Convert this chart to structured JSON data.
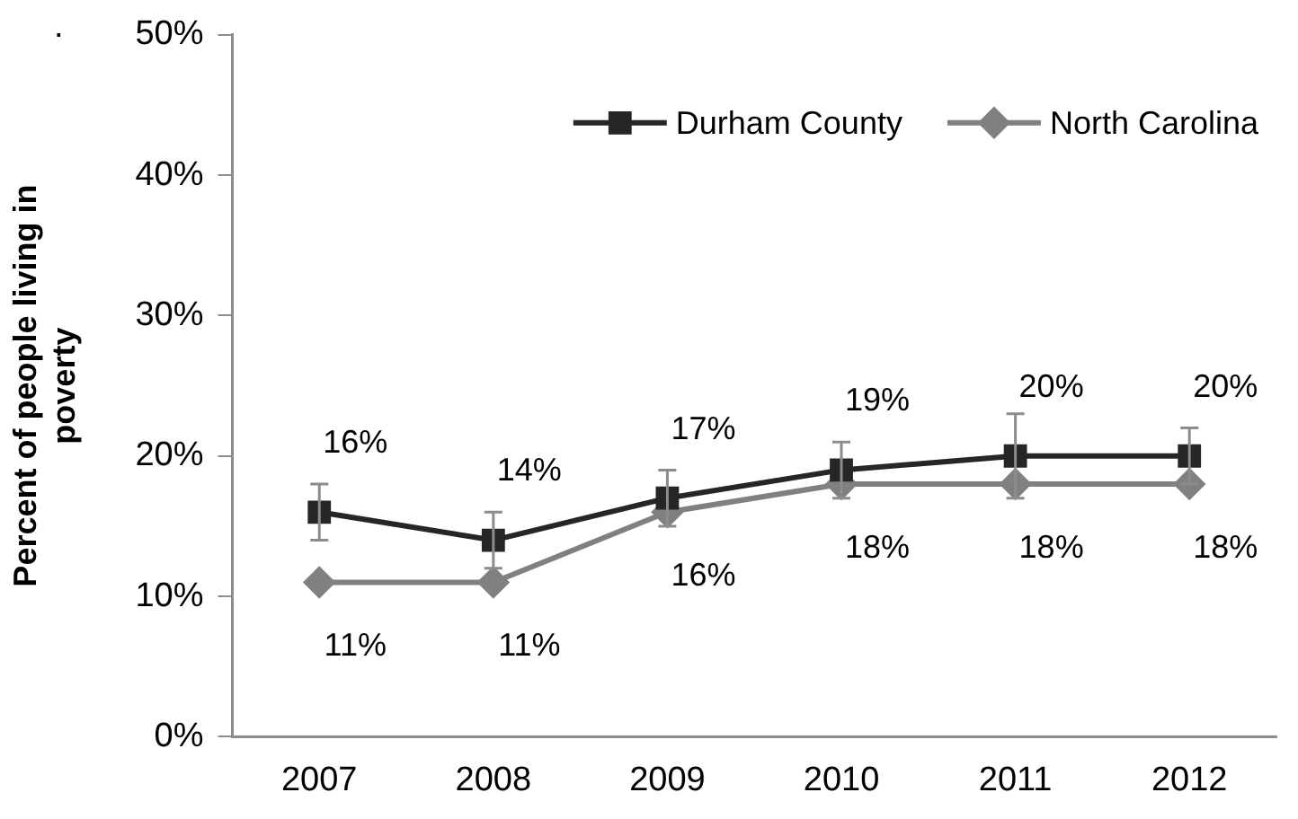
{
  "chart_data": {
    "type": "line",
    "ylabel": "Percent of people living in poverty",
    "categories": [
      "2007",
      "2008",
      "2009",
      "2010",
      "2011",
      "2012"
    ],
    "series": [
      {
        "name": "Durham County",
        "color": "#262626",
        "marker": "square",
        "values": [
          16,
          14,
          17,
          19,
          20,
          20
        ],
        "errors": [
          2,
          2,
          2,
          2,
          3,
          2
        ],
        "value_labels": [
          "16%",
          "14%",
          "17%",
          "19%",
          "20%",
          "20%"
        ]
      },
      {
        "name": "North Carolina",
        "color": "#808080",
        "marker": "diamond",
        "values": [
          11,
          11,
          16,
          18,
          18,
          18
        ],
        "value_labels": [
          "11%",
          "11%",
          "16%",
          "18%",
          "18%",
          "18%"
        ]
      }
    ],
    "ylim": [
      0,
      50
    ],
    "yticks": [
      {
        "value": 0,
        "label": "0%"
      },
      {
        "value": 10,
        "label": "10%"
      },
      {
        "value": 20,
        "label": "20%"
      },
      {
        "value": 30,
        "label": "30%"
      },
      {
        "value": 40,
        "label": "40%"
      },
      {
        "value": 50,
        "label": "50%"
      }
    ],
    "grid": false,
    "legend": "top right",
    "line_style": "solid",
    "annotations": [
      "."
    ]
  }
}
